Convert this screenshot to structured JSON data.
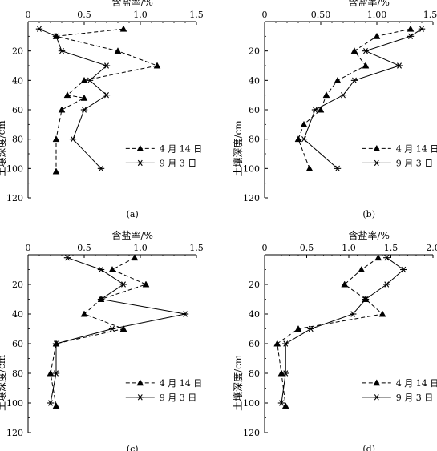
{
  "chart_data": [
    {
      "type": "line",
      "panel_label": "(a)",
      "xlabel": "含盐率/%",
      "ylabel": "土壤深度/cm",
      "xlim": [
        0,
        1.5
      ],
      "ylim": [
        0,
        120
      ],
      "x_axis_position": "top",
      "y_inverted": true,
      "x_tick_labels": [
        "0",
        "0.5",
        "1.0",
        "1.5"
      ],
      "y_tick_labels": [
        "20",
        "40",
        "60",
        "80",
        "100",
        "120"
      ],
      "legend_position": "lower-right",
      "series": [
        {
          "name": "4 月 14 日",
          "marker": "triangle",
          "dash": "dashed",
          "x": [
            0.85,
            0.25,
            0.8,
            1.15,
            0.5,
            0.35,
            0.5,
            0.3,
            0.25,
            0.25
          ],
          "y": [
            5,
            10,
            20,
            30,
            40,
            50,
            52,
            60,
            80,
            102
          ]
        },
        {
          "name": "9 月 3 日",
          "marker": "asterisk",
          "dash": "solid",
          "x": [
            0.1,
            0.25,
            0.3,
            0.7,
            0.55,
            0.7,
            0.5,
            0.4,
            0.65
          ],
          "y": [
            5,
            10,
            20,
            30,
            40,
            50,
            60,
            80,
            100
          ]
        }
      ]
    },
    {
      "type": "line",
      "panel_label": "(b)",
      "xlabel": "含盐率/%",
      "ylabel": "土壤深度/cm",
      "xlim": [
        0,
        1.5
      ],
      "ylim": [
        0,
        120
      ],
      "x_axis_position": "top",
      "y_inverted": true,
      "x_tick_labels": [
        "0",
        "0.50",
        "1.00",
        "1.50"
      ],
      "y_tick_labels": [
        "20",
        "40",
        "60",
        "80",
        "100",
        "120"
      ],
      "legend_position": "lower-right",
      "series": [
        {
          "name": "4 月 14 日",
          "marker": "triangle",
          "dash": "dashed",
          "x": [
            1.3,
            1.0,
            0.8,
            0.9,
            0.65,
            0.55,
            0.5,
            0.35,
            0.3,
            0.4
          ],
          "y": [
            5,
            10,
            20,
            30,
            40,
            50,
            60,
            70,
            80,
            100
          ]
        },
        {
          "name": "9 月 3 日",
          "marker": "asterisk",
          "dash": "solid",
          "x": [
            1.4,
            1.3,
            0.9,
            1.2,
            0.8,
            0.7,
            0.45,
            0.35,
            0.65
          ],
          "y": [
            5,
            10,
            20,
            30,
            40,
            50,
            60,
            80,
            100
          ]
        }
      ]
    },
    {
      "type": "line",
      "panel_label": "(c)",
      "xlabel": "含盐率/%",
      "ylabel": "土壤深度/cm",
      "xlim": [
        0,
        1.5
      ],
      "ylim": [
        0,
        120
      ],
      "x_axis_position": "top",
      "y_inverted": true,
      "x_tick_labels": [
        "0",
        "0.5",
        "1.0",
        "1.5"
      ],
      "y_tick_labels": [
        "20",
        "40",
        "60",
        "80",
        "100",
        "120"
      ],
      "legend_position": "lower-right",
      "series": [
        {
          "name": "4 月 14 日",
          "marker": "triangle",
          "dash": "dashed",
          "x": [
            0.95,
            0.75,
            1.05,
            0.65,
            0.5,
            0.85,
            0.25,
            0.2,
            0.25
          ],
          "y": [
            2,
            10,
            20,
            30,
            40,
            50,
            60,
            80,
            102
          ]
        },
        {
          "name": "9 月 3 日",
          "marker": "asterisk",
          "dash": "solid",
          "x": [
            0.35,
            0.65,
            0.85,
            0.65,
            1.4,
            0.75,
            0.25,
            0.25,
            0.2
          ],
          "y": [
            2,
            10,
            20,
            30,
            40,
            50,
            60,
            80,
            100
          ]
        }
      ]
    },
    {
      "type": "line",
      "panel_label": "(d)",
      "xlabel": "含盐率/%",
      "ylabel": "土壤深度/cm",
      "xlim": [
        0,
        2.0
      ],
      "ylim": [
        0,
        120
      ],
      "x_axis_position": "top",
      "y_inverted": true,
      "x_tick_labels": [
        "0",
        "0.5",
        "1.0",
        "1.5",
        "2.0"
      ],
      "y_tick_labels": [
        "20",
        "40",
        "60",
        "80",
        "100",
        "120"
      ],
      "legend_position": "lower-right",
      "series": [
        {
          "name": "4 月 14 日",
          "marker": "triangle",
          "dash": "dashed",
          "x": [
            1.35,
            1.15,
            0.95,
            1.2,
            1.4,
            0.4,
            0.15,
            0.2,
            0.25
          ],
          "y": [
            2,
            10,
            20,
            30,
            40,
            50,
            60,
            80,
            102
          ]
        },
        {
          "name": "9 月 3 日",
          "marker": "asterisk",
          "dash": "solid",
          "x": [
            1.45,
            1.65,
            1.45,
            1.2,
            1.05,
            0.55,
            0.25,
            0.25,
            0.2
          ],
          "y": [
            2,
            10,
            20,
            30,
            40,
            50,
            60,
            80,
            100
          ]
        }
      ]
    }
  ]
}
